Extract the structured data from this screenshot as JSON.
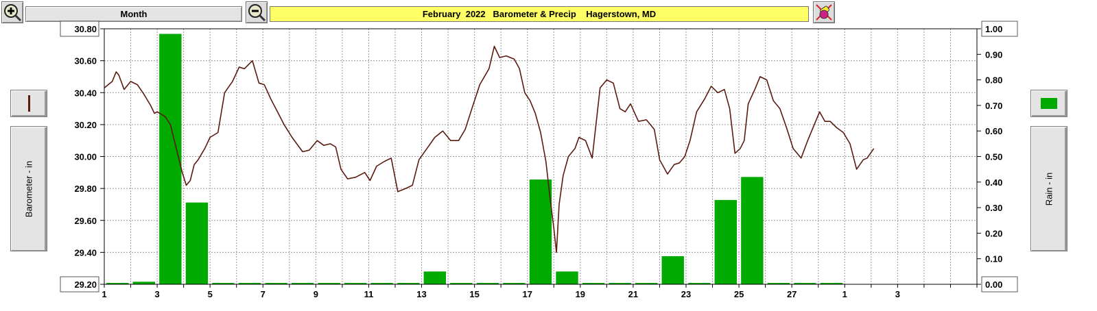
{
  "toolbar": {
    "zoom_in_icon": "zoom-in-icon",
    "zoom_out_icon": "zoom-out-icon",
    "period_label": "Month",
    "title": "February  2022   Barometer & Precip    Hagerstown, MD",
    "clear_icon": "eraser-icon"
  },
  "left_panel": {
    "series_swatch_color": "#5a1a10",
    "axis_label": "Barometer - in"
  },
  "right_panel": {
    "series_swatch_color": "#00aa00",
    "axis_label": "Rain - in"
  },
  "chart_data": {
    "type": "bar+line",
    "title": "February  2022   Barometer & Precip    Hagerstown, MD",
    "xlabel": "",
    "x_ticks": [
      "1",
      "3",
      "5",
      "7",
      "9",
      "11",
      "13",
      "15",
      "17",
      "19",
      "21",
      "23",
      "25",
      "27",
      "1",
      "3"
    ],
    "x_range_days": [
      1,
      34
    ],
    "left_axis": {
      "label": "Barometer - in",
      "range": [
        29.2,
        30.8
      ],
      "ticks": [
        "30.80",
        "30.60",
        "30.40",
        "30.20",
        "30.00",
        "29.80",
        "29.60",
        "29.40",
        "29.20"
      ]
    },
    "right_axis": {
      "label": "Rain - in",
      "range": [
        0,
        1.0
      ],
      "ticks": [
        "1.00",
        "0.90",
        "0.80",
        "0.70",
        "0.60",
        "0.50",
        "0.40",
        "0.30",
        "0.20",
        "0.10",
        "0.00"
      ]
    },
    "grid": true,
    "colors": {
      "barometer": "#5a1a10",
      "rain": "#00aa00"
    },
    "rain_series": {
      "name": "Rain - in",
      "days": [
        1,
        2,
        3,
        4,
        5,
        6,
        7,
        8,
        9,
        10,
        11,
        12,
        13,
        14,
        15,
        16,
        17,
        18,
        19,
        20,
        21,
        22,
        23,
        24,
        25,
        26,
        27,
        28
      ],
      "values": [
        0,
        0.01,
        0.98,
        0.32,
        0,
        0,
        0,
        0,
        0,
        0,
        0,
        0,
        0.05,
        0,
        0,
        0,
        0.41,
        0.05,
        0,
        0,
        0,
        0.11,
        0,
        0.33,
        0.42,
        0,
        0,
        0
      ]
    },
    "barometer_series": {
      "name": "Barometer - in",
      "day": [
        1.0,
        1.3,
        1.45,
        1.55,
        1.75,
        2.0,
        2.25,
        2.5,
        2.75,
        2.9,
        3.0,
        3.3,
        3.5,
        3.65,
        3.8,
        3.95,
        4.1,
        4.25,
        4.4,
        4.55,
        4.8,
        5.0,
        5.3,
        5.55,
        5.85,
        6.1,
        6.3,
        6.6,
        6.85,
        7.05,
        7.3,
        7.55,
        7.8,
        8.1,
        8.5,
        8.75,
        9.05,
        9.3,
        9.55,
        9.75,
        9.95,
        10.2,
        10.5,
        10.85,
        11.05,
        11.3,
        11.6,
        11.85,
        12.1,
        12.4,
        12.65,
        12.9,
        13.2,
        13.5,
        13.8,
        14.1,
        14.4,
        14.65,
        14.9,
        15.2,
        15.55,
        15.75,
        15.95,
        16.2,
        16.5,
        16.7,
        16.9,
        17.1,
        17.3,
        17.5,
        17.7,
        17.85,
        18.0,
        18.1,
        18.2,
        18.35,
        18.55,
        18.8,
        18.95,
        19.2,
        19.45,
        19.75,
        20.0,
        20.25,
        20.5,
        20.7,
        20.9,
        21.2,
        21.5,
        21.8,
        22.0,
        22.3,
        22.55,
        22.75,
        22.95,
        23.15,
        23.4,
        23.7,
        23.95,
        24.2,
        24.45,
        24.65,
        24.85,
        25.05,
        25.2,
        25.35,
        25.6,
        25.8,
        26.05,
        26.3,
        26.55,
        26.8,
        27.05,
        27.35,
        27.6,
        27.85,
        28.05,
        28.25,
        28.45,
        28.7,
        28.95,
        29.2,
        29.45,
        29.7,
        29.85,
        30.1,
        30.3,
        30.55
      ],
      "inches": [
        30.43,
        30.47,
        30.53,
        30.51,
        30.42,
        30.47,
        30.45,
        30.39,
        30.32,
        30.27,
        30.28,
        30.25,
        30.2,
        30.1,
        30.0,
        29.9,
        29.82,
        29.85,
        29.95,
        29.98,
        30.05,
        30.12,
        30.15,
        30.4,
        30.47,
        30.56,
        30.55,
        30.6,
        30.46,
        30.45,
        30.36,
        30.28,
        30.2,
        30.12,
        30.03,
        30.04,
        30.1,
        30.07,
        30.08,
        30.06,
        29.92,
        29.86,
        29.87,
        29.9,
        29.85,
        29.94,
        29.97,
        29.99,
        29.78,
        29.8,
        29.82,
        29.98,
        30.05,
        30.12,
        30.16,
        30.1,
        30.1,
        30.17,
        30.3,
        30.45,
        30.55,
        30.69,
        30.62,
        30.63,
        30.61,
        30.55,
        30.4,
        30.35,
        30.27,
        30.15,
        29.97,
        29.75,
        29.55,
        29.4,
        29.7,
        29.88,
        30.0,
        30.05,
        30.12,
        30.1,
        29.99,
        30.43,
        30.48,
        30.46,
        30.3,
        30.28,
        30.33,
        30.22,
        30.23,
        30.17,
        29.98,
        29.89,
        29.95,
        29.96,
        30.0,
        30.1,
        30.28,
        30.36,
        30.44,
        30.4,
        30.42,
        30.3,
        30.02,
        30.05,
        30.1,
        30.33,
        30.42,
        30.5,
        30.48,
        30.35,
        30.3,
        30.18,
        30.05,
        29.99,
        30.1,
        30.2,
        30.28,
        30.22,
        30.22,
        30.18,
        30.15,
        30.08,
        29.92,
        29.98,
        29.99,
        30.05
      ]
    }
  }
}
